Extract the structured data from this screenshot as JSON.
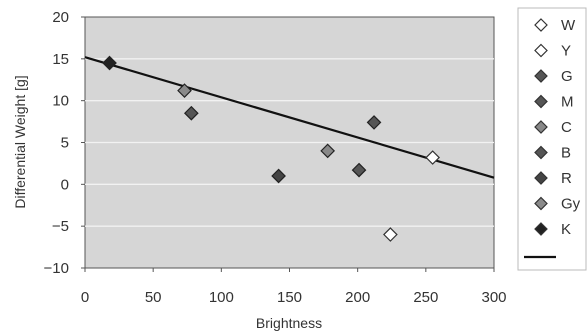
{
  "chart_data": {
    "type": "scatter",
    "title": "",
    "xlabel": "Brightness",
    "ylabel": "Differential Weight [g]",
    "xlim": [
      0,
      300
    ],
    "ylim": [
      -10,
      20
    ],
    "x_ticks": [
      0,
      50,
      100,
      150,
      200,
      250,
      300
    ],
    "y_ticks": [
      -10,
      -5,
      0,
      5,
      10,
      15,
      20
    ],
    "grid": true,
    "legend_position": "right",
    "series": [
      {
        "name": "W",
        "marker": "open",
        "color": "#ffffff",
        "points": [
          [
            255,
            3.2
          ]
        ]
      },
      {
        "name": "Y",
        "marker": "open",
        "color": "#ffffff",
        "points": [
          [
            224,
            -6
          ]
        ]
      },
      {
        "name": "G",
        "marker": "filled",
        "color": "#555555",
        "points": [
          [
            212,
            7.4
          ]
        ]
      },
      {
        "name": "M",
        "marker": "filled",
        "color": "#555555",
        "points": [
          [
            78,
            8.5
          ]
        ]
      },
      {
        "name": "C",
        "marker": "filled",
        "color": "#888888",
        "points": [
          [
            178,
            4
          ]
        ]
      },
      {
        "name": "B",
        "marker": "filled",
        "color": "#555555",
        "points": [
          [
            201,
            1.7
          ]
        ]
      },
      {
        "name": "R",
        "marker": "filled",
        "color": "#444444",
        "points": [
          [
            142,
            1
          ]
        ]
      },
      {
        "name": "Gy",
        "marker": "filled",
        "color": "#8a8a8a",
        "points": [
          [
            73,
            11.2
          ]
        ]
      },
      {
        "name": "K",
        "marker": "filled",
        "color": "#222222",
        "points": [
          [
            18,
            14.5
          ]
        ]
      }
    ],
    "trendline": {
      "x": [
        0,
        300
      ],
      "y": [
        15.2,
        0.8
      ],
      "color": "#111111"
    },
    "plot_background": "#d6d6d6",
    "grid_color": "#f2f2f2"
  }
}
